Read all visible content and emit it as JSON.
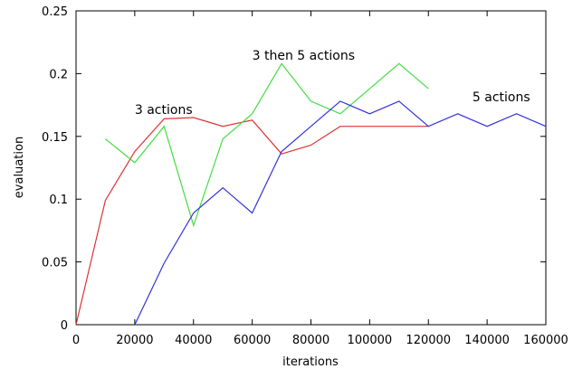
{
  "chart_data": {
    "type": "line",
    "title": "",
    "xlabel": "iterations",
    "ylabel": "evaluation",
    "xlim": [
      0,
      160000
    ],
    "ylim": [
      0,
      0.25
    ],
    "grid": false,
    "legend": "none",
    "x_ticks": [
      "0",
      "20000",
      "40000",
      "60000",
      "80000",
      "100000",
      "120000",
      "140000",
      "160000"
    ],
    "y_ticks": [
      "0",
      "0.05",
      "0.1",
      "0.15",
      "0.2",
      "0.25"
    ],
    "series": [
      {
        "color": "#dd3333",
        "points": [
          [
            0,
            0
          ],
          [
            10000,
            0.099
          ],
          [
            20000,
            0.138
          ],
          [
            30000,
            0.164
          ],
          [
            40000,
            0.165
          ],
          [
            50000,
            0.158
          ],
          [
            60000,
            0.163
          ],
          [
            70000,
            0.136
          ],
          [
            80000,
            0.143
          ],
          [
            90000,
            0.158
          ],
          [
            100000,
            0.158
          ],
          [
            110000,
            0.158
          ],
          [
            120000,
            0.158
          ]
        ]
      },
      {
        "color": "#44dd44",
        "points": [
          [
            10000,
            0.148
          ],
          [
            20000,
            0.129
          ],
          [
            30000,
            0.158
          ],
          [
            40000,
            0.079
          ],
          [
            50000,
            0.148
          ],
          [
            60000,
            0.168
          ],
          [
            70000,
            0.208
          ],
          [
            80000,
            0.178
          ],
          [
            90000,
            0.168
          ],
          [
            100000,
            0.188
          ],
          [
            110000,
            0.208
          ],
          [
            120000,
            0.188
          ]
        ]
      },
      {
        "color": "#3333dd",
        "points": [
          [
            20000,
            0
          ],
          [
            30000,
            0.049
          ],
          [
            40000,
            0.089
          ],
          [
            50000,
            0.109
          ],
          [
            60000,
            0.089
          ],
          [
            70000,
            0.138
          ],
          [
            80000,
            0.158
          ],
          [
            90000,
            0.178
          ],
          [
            100000,
            0.168
          ],
          [
            110000,
            0.178
          ],
          [
            120000,
            0.158
          ],
          [
            130000,
            0.168
          ],
          [
            140000,
            0.158
          ],
          [
            150000,
            0.168
          ],
          [
            160000,
            0.158
          ]
        ]
      }
    ],
    "annotations": [
      {
        "text": "3 actions",
        "x": 20000,
        "y": 0.168
      },
      {
        "text": "3 then 5 actions",
        "x": 60000,
        "y": 0.211
      },
      {
        "text": "5 actions",
        "x": 135000,
        "y": 0.178
      }
    ]
  }
}
